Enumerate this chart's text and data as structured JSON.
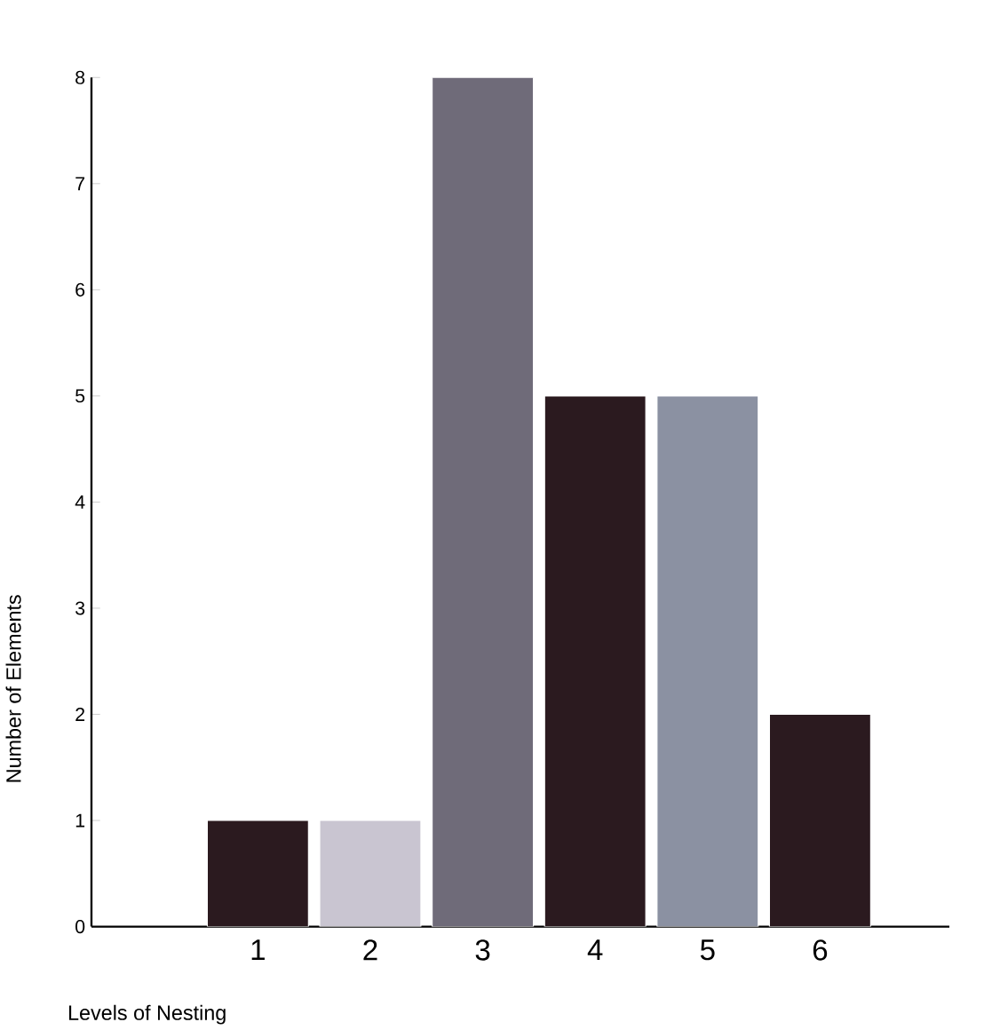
{
  "chart_data": {
    "type": "bar",
    "xlabel": "Levels of Nesting",
    "ylabel": "Number of Elements",
    "categories": [
      "1",
      "2",
      "3",
      "4",
      "5",
      "6"
    ],
    "values": [
      1,
      1,
      8,
      5,
      5,
      2
    ],
    "colors": [
      "#2b1a1f",
      "#c9c5d1",
      "#6f6b79",
      "#2b1a1f",
      "#8b91a2",
      "#2b1a1f"
    ],
    "ylim": [
      0,
      8
    ],
    "yticks": [
      0,
      1,
      2,
      3,
      4,
      5,
      6,
      7,
      8
    ]
  }
}
